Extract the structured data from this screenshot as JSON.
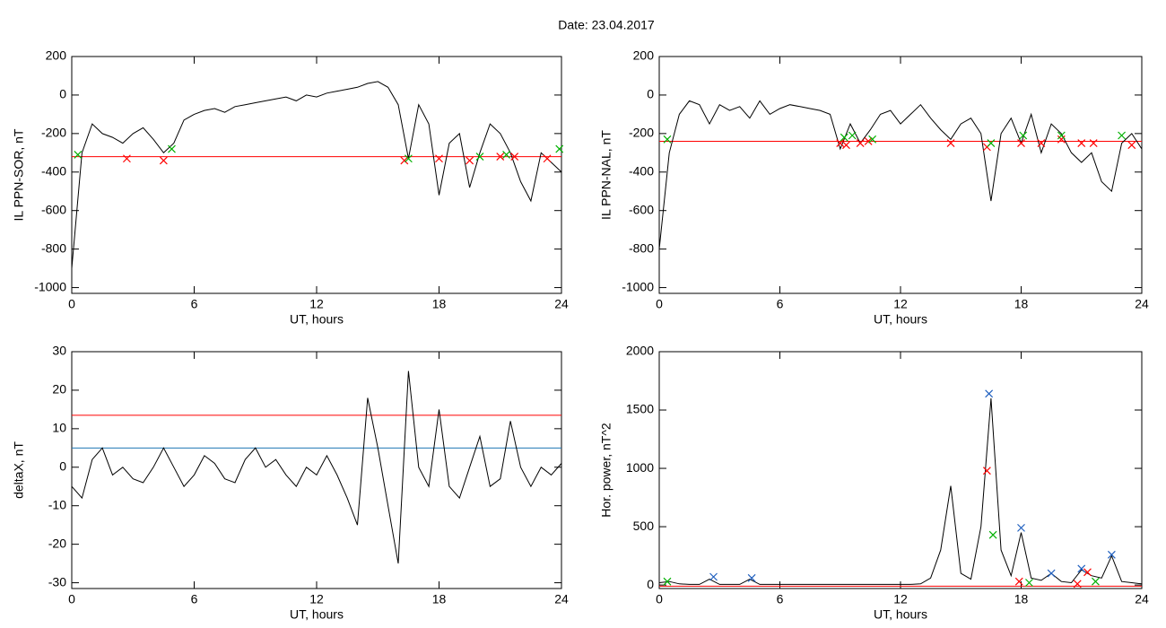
{
  "title": "Date:  23.04.2017",
  "chart_data": [
    {
      "type": "line",
      "xlabel": "UT, hours",
      "ylabel": "IL PPN-SOR, nT",
      "xlim": [
        0,
        24
      ],
      "xticks": [
        0,
        6,
        12,
        18,
        24
      ],
      "ylim": [
        -1030,
        200
      ],
      "yticks": [
        -1000,
        -800,
        -600,
        -400,
        -200,
        0,
        200
      ],
      "x": [
        0,
        0.5,
        1,
        1.5,
        2,
        2.5,
        3,
        3.5,
        4,
        4.5,
        5,
        5.5,
        6,
        6.5,
        7,
        7.5,
        8,
        8.5,
        9,
        9.5,
        10,
        10.5,
        11,
        11.5,
        12,
        12.5,
        13,
        13.5,
        14,
        14.5,
        15,
        15.5,
        16,
        16.5,
        17,
        17.5,
        18,
        18.5,
        19,
        19.5,
        20,
        20.5,
        21,
        21.5,
        22,
        22.5,
        23,
        23.5,
        24
      ],
      "series": [
        {
          "color": "#000000",
          "values": [
            -900,
            -300,
            -150,
            -200,
            -220,
            -250,
            -200,
            -170,
            -230,
            -300,
            -250,
            -130,
            -100,
            -80,
            -70,
            -90,
            -60,
            -50,
            -40,
            -30,
            -20,
            -10,
            -30,
            0,
            -10,
            10,
            20,
            30,
            40,
            60,
            70,
            40,
            -50,
            -330,
            -50,
            -150,
            -520,
            -250,
            -200,
            -480,
            -300,
            -150,
            -200,
            -300,
            -450,
            -550,
            -300,
            -350,
            -400
          ]
        }
      ],
      "hlines": [
        {
          "value": -320,
          "color": "#ff0000"
        }
      ],
      "markers": [
        {
          "color": "#ff0000",
          "x": [
            2.7,
            4.5,
            16.3,
            18,
            19.5,
            21,
            21.7,
            23.3
          ],
          "values": [
            -330,
            -340,
            -340,
            -330,
            -340,
            -320,
            -320,
            -330
          ]
        },
        {
          "color": "#00b000",
          "x": [
            0.3,
            4.9,
            16.5,
            20,
            21.3,
            23.9
          ],
          "values": [
            -310,
            -280,
            -330,
            -320,
            -310,
            -280
          ]
        }
      ]
    },
    {
      "type": "line",
      "xlabel": "UT, hours",
      "ylabel": "IL PPN-NAL, nT",
      "xlim": [
        0,
        24
      ],
      "xticks": [
        0,
        6,
        12,
        18,
        24
      ],
      "ylim": [
        -1030,
        200
      ],
      "yticks": [
        -1000,
        -800,
        -600,
        -400,
        -200,
        0,
        200
      ],
      "x": [
        0,
        0.5,
        1,
        1.5,
        2,
        2.5,
        3,
        3.5,
        4,
        4.5,
        5,
        5.5,
        6,
        6.5,
        7,
        7.5,
        8,
        8.5,
        9,
        9.5,
        10,
        10.5,
        11,
        11.5,
        12,
        12.5,
        13,
        13.5,
        14,
        14.5,
        15,
        15.5,
        16,
        16.5,
        17,
        17.5,
        18,
        18.5,
        19,
        19.5,
        20,
        20.5,
        21,
        21.5,
        22,
        22.5,
        23,
        23.5,
        24
      ],
      "series": [
        {
          "color": "#000000",
          "values": [
            -800,
            -300,
            -100,
            -30,
            -50,
            -150,
            -50,
            -80,
            -60,
            -120,
            -30,
            -100,
            -70,
            -50,
            -60,
            -70,
            -80,
            -100,
            -280,
            -150,
            -250,
            -180,
            -100,
            -80,
            -150,
            -100,
            -50,
            -120,
            -180,
            -230,
            -150,
            -120,
            -200,
            -550,
            -200,
            -120,
            -250,
            -100,
            -300,
            -150,
            -200,
            -300,
            -350,
            -300,
            -450,
            -500,
            -250,
            -200,
            -280
          ]
        }
      ],
      "hlines": [
        {
          "value": -240,
          "color": "#ff0000"
        }
      ],
      "markers": [
        {
          "color": "#ff0000",
          "x": [
            9,
            9.3,
            10,
            10.4,
            14.5,
            16.3,
            18,
            19,
            20,
            21,
            21.6,
            23.5
          ],
          "values": [
            -250,
            -260,
            -250,
            -240,
            -250,
            -270,
            -250,
            -250,
            -230,
            -250,
            -250,
            -260
          ]
        },
        {
          "color": "#00b000",
          "x": [
            0.4,
            9.2,
            9.6,
            10.6,
            16.5,
            18.1,
            20,
            23
          ],
          "values": [
            -230,
            -220,
            -210,
            -230,
            -250,
            -210,
            -210,
            -210
          ]
        }
      ]
    },
    {
      "type": "line",
      "xlabel": "UT, hours",
      "ylabel": "deltaX, nT",
      "xlim": [
        0,
        24
      ],
      "xticks": [
        0,
        6,
        12,
        18,
        24
      ],
      "ylim": [
        -31.5,
        30
      ],
      "yticks": [
        -30,
        -20,
        -10,
        0,
        10,
        20,
        30
      ],
      "x": [
        0,
        0.5,
        1,
        1.5,
        2,
        2.5,
        3,
        3.5,
        4,
        4.5,
        5,
        5.5,
        6,
        6.5,
        7,
        7.5,
        8,
        8.5,
        9,
        9.5,
        10,
        10.5,
        11,
        11.5,
        12,
        12.5,
        13,
        13.5,
        14,
        14.5,
        15,
        15.5,
        16,
        16.5,
        17,
        17.5,
        18,
        18.5,
        19,
        19.5,
        20,
        20.5,
        21,
        21.5,
        22,
        22.5,
        23,
        23.5,
        24
      ],
      "series": [
        {
          "color": "#000000",
          "values": [
            -5,
            -8,
            2,
            5,
            -2,
            0,
            -3,
            -4,
            0,
            5,
            0,
            -5,
            -2,
            3,
            1,
            -3,
            -4,
            2,
            5,
            0,
            2,
            -2,
            -5,
            0,
            -2,
            3,
            -2,
            -8,
            -15,
            18,
            5,
            -10,
            -25,
            25,
            0,
            -5,
            15,
            -5,
            -8,
            0,
            8,
            -5,
            -3,
            12,
            0,
            -5,
            0,
            -2,
            1
          ]
        }
      ],
      "hlines": [
        {
          "value": 13.5,
          "color": "#ff0000"
        },
        {
          "value": 5,
          "color": "#1f77b4"
        }
      ]
    },
    {
      "type": "line",
      "xlabel": "UT, hours",
      "ylabel": "Hor. power, nT^2",
      "xlim": [
        0,
        24
      ],
      "xticks": [
        0,
        6,
        12,
        18,
        24
      ],
      "ylim": [
        -30,
        2000
      ],
      "yticks": [
        0,
        500,
        1000,
        1500,
        2000
      ],
      "x": [
        0,
        0.5,
        1,
        1.5,
        2,
        2.5,
        3,
        3.5,
        4,
        4.5,
        5,
        5.5,
        6,
        6.5,
        7,
        7.5,
        8,
        8.5,
        9,
        9.5,
        10,
        10.5,
        11,
        11.5,
        12,
        12.5,
        13,
        13.5,
        14,
        14.5,
        15,
        15.5,
        16,
        16.5,
        17,
        17.5,
        18,
        18.5,
        19,
        19.5,
        20,
        20.5,
        21,
        21.5,
        22,
        22.5,
        23,
        23.5,
        24
      ],
      "series": [
        {
          "color": "#000000",
          "values": [
            20,
            30,
            10,
            5,
            5,
            50,
            5,
            5,
            5,
            50,
            5,
            5,
            5,
            5,
            5,
            5,
            5,
            5,
            5,
            5,
            5,
            5,
            5,
            5,
            5,
            5,
            10,
            60,
            300,
            850,
            100,
            50,
            500,
            1600,
            300,
            80,
            450,
            60,
            40,
            100,
            30,
            20,
            130,
            80,
            60,
            250,
            30,
            20,
            10
          ]
        }
      ],
      "hlines": [
        {
          "value": -10,
          "color": "#ff0000"
        }
      ],
      "markers": [
        {
          "color": "#1f5fbf",
          "x": [
            2.7,
            4.6,
            16.4,
            18,
            19.5,
            21,
            22.5
          ],
          "values": [
            70,
            60,
            1640,
            490,
            100,
            140,
            260
          ]
        },
        {
          "color": "#ff0000",
          "x": [
            16.3,
            17.9,
            20.8,
            21.3
          ],
          "values": [
            980,
            30,
            10,
            110
          ]
        },
        {
          "color": "#00b000",
          "x": [
            0.4,
            16.6,
            18.4,
            21.7
          ],
          "values": [
            30,
            430,
            20,
            30
          ]
        }
      ]
    }
  ]
}
